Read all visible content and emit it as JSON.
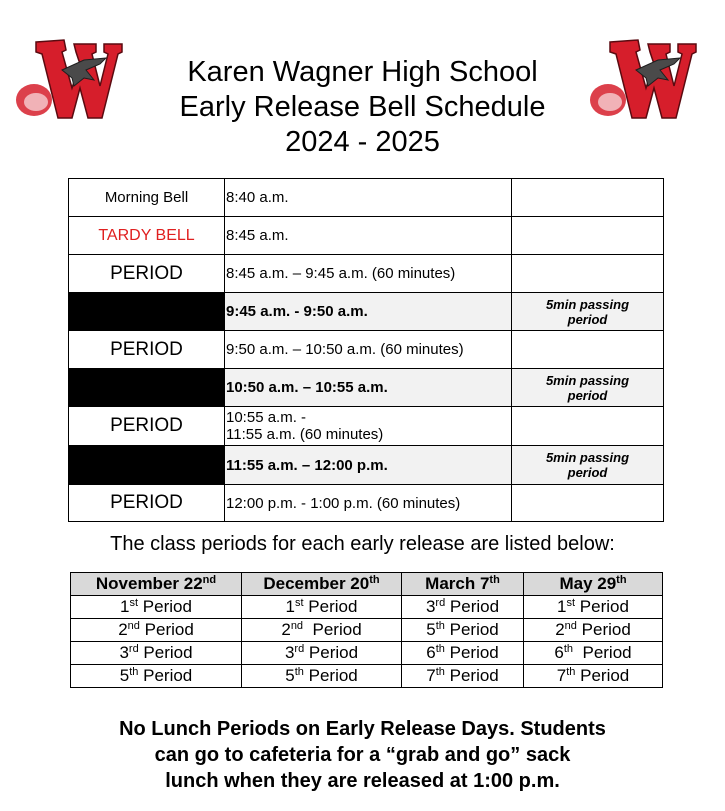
{
  "header": {
    "title_line1": "Karen Wagner High School",
    "title_line2": "Early Release Bell Schedule",
    "title_line3": "2024 - 2025",
    "logo_colors": {
      "red": "#d61e2b",
      "dark": "#3a3a3a"
    }
  },
  "schedule": {
    "rows": [
      {
        "label": "Morning Bell",
        "time": "8:40 a.m.",
        "note": ""
      },
      {
        "label": "TARDY BELL",
        "time": "8:45 a.m.",
        "note": ""
      },
      {
        "label": "PERIOD",
        "time": "8:45 a.m. – 9:45 a.m. (60 minutes)",
        "note": ""
      },
      {
        "label": "",
        "time": "9:45 a.m. - 9:50 a.m.",
        "note_line1": "5min passing",
        "note_line2": "period"
      },
      {
        "label": "PERIOD",
        "time": "9:50 a.m. – 10:50 a.m. (60 minutes)",
        "note": ""
      },
      {
        "label": "",
        "time": "10:50 a.m. – 10:55 a.m.",
        "note_line1": "5min passing",
        "note_line2": "period"
      },
      {
        "label": "PERIOD",
        "time_line1": "10:55 a.m. -",
        "time_line2": "11:55 a.m. (60 minutes)",
        "note": ""
      },
      {
        "label": "",
        "time": "11:55 a.m. – 12:00 p.m.",
        "note_line1": "5min passing",
        "note_line2": "period"
      },
      {
        "label": "PERIOD",
        "time": "12:00 p.m. - 1:00 p.m. (60 minutes)",
        "note": ""
      }
    ],
    "tardy_color": "#e02020"
  },
  "subtitle": "The class periods for each early release are listed below:",
  "periods_table": {
    "headers": [
      {
        "text": "November 22",
        "sup": "nd"
      },
      {
        "text": "December 20",
        "sup": "th"
      },
      {
        "text": "March 7",
        "sup": "th"
      },
      {
        "text": "May 29",
        "sup": "th"
      }
    ],
    "rows": [
      [
        {
          "n": "1",
          "sup": "st",
          "t": " Period"
        },
        {
          "n": "1",
          "sup": "st",
          "t": " Period"
        },
        {
          "n": "3",
          "sup": "rd",
          "t": " Period"
        },
        {
          "n": "1",
          "sup": "st",
          "t": " Period"
        }
      ],
      [
        {
          "n": "2",
          "sup": "nd",
          "t": " Period"
        },
        {
          "n": "2",
          "sup": "nd",
          "t": "  Period"
        },
        {
          "n": "5",
          "sup": "th",
          "t": " Period"
        },
        {
          "n": "2",
          "sup": "nd",
          "t": " Period"
        }
      ],
      [
        {
          "n": "3",
          "sup": "rd",
          "t": " Period"
        },
        {
          "n": "3",
          "sup": "rd",
          "t": " Period"
        },
        {
          "n": "6",
          "sup": "th",
          "t": " Period"
        },
        {
          "n": "6",
          "sup": "th",
          "t": "  Period"
        }
      ],
      [
        {
          "n": "5",
          "sup": "th",
          "t": " Period"
        },
        {
          "n": "5",
          "sup": "th",
          "t": " Period"
        },
        {
          "n": "7",
          "sup": "th",
          "t": " Period"
        },
        {
          "n": "7",
          "sup": "th",
          "t": " Period"
        }
      ]
    ]
  },
  "footer": {
    "line1": "No Lunch Periods on Early Release Days. Students",
    "line2": "can go to cafeteria for a “grab and go” sack",
    "line3": "lunch when they are released at 1:00 p.m."
  }
}
